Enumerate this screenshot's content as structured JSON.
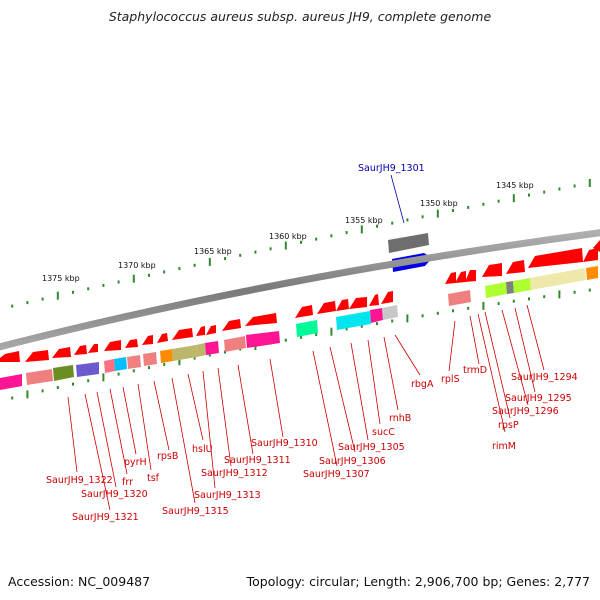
{
  "title": "Staphylococcus aureus subsp. aureus JH9, complete genome",
  "footer": {
    "accession": "Accession: NC_009487",
    "summary": "Topology: circular; Length: 2,906,700 bp; Genes: 2,777"
  },
  "scale_labels": [
    "1375 kbp",
    "1370 kbp",
    "1365 kbp",
    "1360 kbp",
    "1355 kbp",
    "1350 kbp",
    "1345 kbp"
  ],
  "colors": {
    "backbone": "#808080",
    "tick": "#2e8b2e",
    "gene": "#ff0000",
    "label": "#cc0000",
    "highlight": "#0000ee"
  },
  "gene_labels": [
    {
      "text": "SaurJH9_1301",
      "highlight": true
    },
    {
      "text": "SaurJH9_1294"
    },
    {
      "text": "SaurJH9_1295"
    },
    {
      "text": "SaurJH9_1296"
    },
    {
      "text": "rpsP"
    },
    {
      "text": "rimM"
    },
    {
      "text": "trmD"
    },
    {
      "text": "rplS"
    },
    {
      "text": "rbgA"
    },
    {
      "text": "rnhB"
    },
    {
      "text": "sucC"
    },
    {
      "text": "SaurJH9_1305"
    },
    {
      "text": "SaurJH9_1306"
    },
    {
      "text": "SaurJH9_1307"
    },
    {
      "text": "SaurJH9_1310"
    },
    {
      "text": "SaurJH9_1311"
    },
    {
      "text": "SaurJH9_1312"
    },
    {
      "text": "SaurJH9_1313"
    },
    {
      "text": "hslU"
    },
    {
      "text": "SaurJH9_1315"
    },
    {
      "text": "rpsB"
    },
    {
      "text": "tsf"
    },
    {
      "text": "pyrH"
    },
    {
      "text": "frr"
    },
    {
      "text": "SaurJH9_1320"
    },
    {
      "text": "SaurJH9_1321"
    },
    {
      "text": "SaurJH9_1322"
    }
  ]
}
